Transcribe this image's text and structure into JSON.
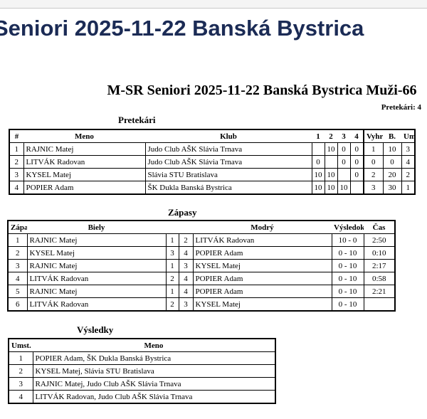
{
  "app_title": "Seniori 2025-11-22 Banská Bystrica",
  "doc_title": "M-SR Seniori 2025-11-22 Banská Bystrica Muži-66",
  "competitor_count": "Pretekári: 4",
  "competitors": {
    "title": "Pretekári",
    "headers": [
      "#",
      "Meno",
      "Klub",
      "1",
      "2",
      "3",
      "4",
      "Vyhraté",
      "B.",
      "Umst."
    ],
    "rows": [
      [
        "1",
        "RAJNIC Matej",
        "Judo Club AŠK Slávia Trnava",
        "",
        "10",
        "0",
        "0",
        "1",
        "10",
        "3"
      ],
      [
        "2",
        "LITVÁK Radovan",
        "Judo Club AŠK Slávia Trnava",
        "0",
        "",
        "0",
        "0",
        "0",
        "0",
        "4"
      ],
      [
        "3",
        "KYSEL Matej",
        "Slávia STU Bratislava",
        "10",
        "10",
        "",
        "0",
        "2",
        "20",
        "2"
      ],
      [
        "4",
        "POPIER Adam",
        "ŠK Dukla Banská Bystrica",
        "10",
        "10",
        "10",
        "",
        "3",
        "30",
        "1"
      ]
    ]
  },
  "matches": {
    "title": "Zápasy",
    "headers": [
      "Zápas",
      "Biely",
      "",
      "",
      "Modrý",
      "Výsledok",
      "Čas"
    ],
    "rows": [
      [
        "1",
        "RAJNIC Matej",
        "1",
        "2",
        "LITVÁK Radovan",
        "10 - 0",
        "2:50"
      ],
      [
        "2",
        "KYSEL Matej",
        "3",
        "4",
        "POPIER Adam",
        "0 - 10",
        "0:10"
      ],
      [
        "3",
        "RAJNIC Matej",
        "1",
        "3",
        "KYSEL Matej",
        "0 - 10",
        "2:17"
      ],
      [
        "4",
        "LITVÁK Radovan",
        "2",
        "4",
        "POPIER Adam",
        "0 - 10",
        "0:58"
      ],
      [
        "5",
        "RAJNIC Matej",
        "1",
        "4",
        "POPIER Adam",
        "0 - 10",
        "2:21"
      ],
      [
        "6",
        "LITVÁK Radovan",
        "2",
        "3",
        "KYSEL Matej",
        "0 - 10",
        ""
      ]
    ]
  },
  "results": {
    "title": "Výsledky",
    "headers": [
      "Umst.",
      "Meno"
    ],
    "rows": [
      [
        "1",
        "POPIER Adam, ŠK Dukla Banská Bystrica"
      ],
      [
        "2",
        "KYSEL Matej, Slávia STU Bratislava"
      ],
      [
        "3",
        "RAJNIC Matej, Judo Club AŠK Slávia Trnava"
      ],
      [
        "4",
        "LITVÁK Radovan, Judo Club AŠK Slávia Trnava"
      ]
    ]
  }
}
